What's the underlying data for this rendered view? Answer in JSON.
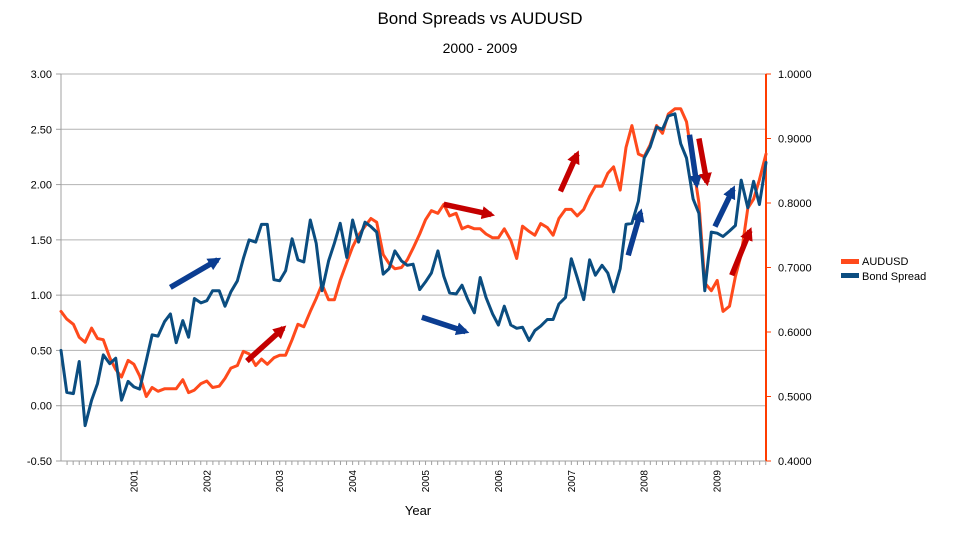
{
  "chart_data": {
    "type": "line",
    "title": "Bond Spreads vs AUDUSD",
    "subtitle": "2000 - 2009",
    "xlabel": "Year",
    "x_range": [
      2000.0,
      2009.67
    ],
    "x_ticks": [
      2001,
      2002,
      2003,
      2004,
      2005,
      2006,
      2007,
      2008,
      2009
    ],
    "left_axis": {
      "series": "Bond Spread",
      "ylim": [
        -0.5,
        3.0
      ],
      "ticks": [
        "-0.50",
        "0.00",
        "0.50",
        "1.00",
        "1.50",
        "2.00",
        "2.50",
        "3.00"
      ]
    },
    "right_axis": {
      "series": "AUDUSD",
      "ylim": [
        0.4,
        1.0
      ],
      "ticks": [
        "0.4000",
        "0.5000",
        "0.6000",
        "0.7000",
        "0.8000",
        "0.9000",
        "1.0000"
      ],
      "color": "#ff3c00"
    },
    "grid": "horizontal",
    "legend_position": "right",
    "series": [
      {
        "name": "AUDUSD",
        "axis": "right",
        "color": "#ff4a1c",
        "points": [
          [
            2000.0,
            0.632
          ],
          [
            2000.08,
            0.62
          ],
          [
            2000.17,
            0.612
          ],
          [
            2000.25,
            0.592
          ],
          [
            2000.33,
            0.584
          ],
          [
            2000.42,
            0.606
          ],
          [
            2000.5,
            0.59
          ],
          [
            2000.58,
            0.588
          ],
          [
            2000.67,
            0.56
          ],
          [
            2000.75,
            0.542
          ],
          [
            2000.83,
            0.53
          ],
          [
            2000.92,
            0.556
          ],
          [
            2001.0,
            0.55
          ],
          [
            2001.08,
            0.532
          ],
          [
            2001.17,
            0.5
          ],
          [
            2001.25,
            0.514
          ],
          [
            2001.33,
            0.508
          ],
          [
            2001.42,
            0.512
          ],
          [
            2001.5,
            0.512
          ],
          [
            2001.58,
            0.512
          ],
          [
            2001.67,
            0.526
          ],
          [
            2001.75,
            0.506
          ],
          [
            2001.83,
            0.51
          ],
          [
            2001.92,
            0.52
          ],
          [
            2002.0,
            0.524
          ],
          [
            2002.08,
            0.514
          ],
          [
            2002.17,
            0.516
          ],
          [
            2002.25,
            0.528
          ],
          [
            2002.33,
            0.544
          ],
          [
            2002.42,
            0.548
          ],
          [
            2002.5,
            0.57
          ],
          [
            2002.58,
            0.566
          ],
          [
            2002.67,
            0.548
          ],
          [
            2002.75,
            0.558
          ],
          [
            2002.83,
            0.55
          ],
          [
            2002.92,
            0.56
          ],
          [
            2003.0,
            0.564
          ],
          [
            2003.08,
            0.564
          ],
          [
            2003.17,
            0.588
          ],
          [
            2003.25,
            0.612
          ],
          [
            2003.33,
            0.608
          ],
          [
            2003.42,
            0.632
          ],
          [
            2003.5,
            0.652
          ],
          [
            2003.58,
            0.674
          ],
          [
            2003.67,
            0.65
          ],
          [
            2003.75,
            0.65
          ],
          [
            2003.83,
            0.68
          ],
          [
            2003.92,
            0.708
          ],
          [
            2004.0,
            0.732
          ],
          [
            2004.08,
            0.75
          ],
          [
            2004.17,
            0.764
          ],
          [
            2004.25,
            0.776
          ],
          [
            2004.33,
            0.77
          ],
          [
            2004.42,
            0.72
          ],
          [
            2004.5,
            0.706
          ],
          [
            2004.58,
            0.698
          ],
          [
            2004.67,
            0.7
          ],
          [
            2004.75,
            0.712
          ],
          [
            2004.83,
            0.73
          ],
          [
            2004.92,
            0.752
          ],
          [
            2005.0,
            0.774
          ],
          [
            2005.08,
            0.788
          ],
          [
            2005.17,
            0.784
          ],
          [
            2005.25,
            0.798
          ],
          [
            2005.33,
            0.78
          ],
          [
            2005.42,
            0.784
          ],
          [
            2005.5,
            0.76
          ],
          [
            2005.58,
            0.764
          ],
          [
            2005.67,
            0.76
          ],
          [
            2005.75,
            0.76
          ],
          [
            2005.83,
            0.752
          ],
          [
            2005.92,
            0.746
          ],
          [
            2006.0,
            0.746
          ],
          [
            2006.08,
            0.76
          ],
          [
            2006.17,
            0.742
          ],
          [
            2006.25,
            0.714
          ],
          [
            2006.33,
            0.764
          ],
          [
            2006.42,
            0.756
          ],
          [
            2006.5,
            0.75
          ],
          [
            2006.58,
            0.768
          ],
          [
            2006.67,
            0.762
          ],
          [
            2006.75,
            0.75
          ],
          [
            2006.83,
            0.776
          ],
          [
            2006.92,
            0.79
          ],
          [
            2007.0,
            0.79
          ],
          [
            2007.08,
            0.78
          ],
          [
            2007.17,
            0.79
          ],
          [
            2007.25,
            0.81
          ],
          [
            2007.33,
            0.826
          ],
          [
            2007.42,
            0.826
          ],
          [
            2007.5,
            0.846
          ],
          [
            2007.58,
            0.856
          ],
          [
            2007.67,
            0.82
          ],
          [
            2007.75,
            0.886
          ],
          [
            2007.83,
            0.92
          ],
          [
            2007.92,
            0.876
          ],
          [
            2008.0,
            0.872
          ],
          [
            2008.08,
            0.89
          ],
          [
            2008.17,
            0.92
          ],
          [
            2008.25,
            0.908
          ],
          [
            2008.33,
            0.938
          ],
          [
            2008.42,
            0.946
          ],
          [
            2008.5,
            0.946
          ],
          [
            2008.58,
            0.926
          ],
          [
            2008.67,
            0.86
          ],
          [
            2008.75,
            0.8
          ],
          [
            2008.83,
            0.676
          ],
          [
            2008.92,
            0.664
          ],
          [
            2009.0,
            0.68
          ],
          [
            2009.08,
            0.632
          ],
          [
            2009.17,
            0.64
          ],
          [
            2009.25,
            0.686
          ],
          [
            2009.33,
            0.72
          ],
          [
            2009.42,
            0.792
          ],
          [
            2009.5,
            0.806
          ],
          [
            2009.58,
            0.836
          ],
          [
            2009.67,
            0.876
          ]
        ]
      },
      {
        "name": "Bond Spread",
        "axis": "left",
        "color": "#0b4d80",
        "points": [
          [
            2000.0,
            0.5
          ],
          [
            2000.08,
            0.12
          ],
          [
            2000.17,
            0.11
          ],
          [
            2000.25,
            0.4
          ],
          [
            2000.33,
            -0.18
          ],
          [
            2000.42,
            0.05
          ],
          [
            2000.5,
            0.2
          ],
          [
            2000.58,
            0.46
          ],
          [
            2000.67,
            0.38
          ],
          [
            2000.75,
            0.43
          ],
          [
            2000.83,
            0.05
          ],
          [
            2000.92,
            0.22
          ],
          [
            2001.0,
            0.17
          ],
          [
            2001.08,
            0.15
          ],
          [
            2001.17,
            0.41
          ],
          [
            2001.25,
            0.64
          ],
          [
            2001.33,
            0.63
          ],
          [
            2001.42,
            0.76
          ],
          [
            2001.5,
            0.83
          ],
          [
            2001.58,
            0.57
          ],
          [
            2001.67,
            0.77
          ],
          [
            2001.75,
            0.62
          ],
          [
            2001.83,
            0.97
          ],
          [
            2001.92,
            0.93
          ],
          [
            2002.0,
            0.95
          ],
          [
            2002.08,
            1.04
          ],
          [
            2002.17,
            1.04
          ],
          [
            2002.25,
            0.9
          ],
          [
            2002.33,
            1.03
          ],
          [
            2002.42,
            1.13
          ],
          [
            2002.5,
            1.33
          ],
          [
            2002.58,
            1.5
          ],
          [
            2002.67,
            1.48
          ],
          [
            2002.75,
            1.64
          ],
          [
            2002.83,
            1.64
          ],
          [
            2002.92,
            1.14
          ],
          [
            2003.0,
            1.13
          ],
          [
            2003.08,
            1.22
          ],
          [
            2003.17,
            1.51
          ],
          [
            2003.25,
            1.32
          ],
          [
            2003.33,
            1.3
          ],
          [
            2003.42,
            1.68
          ],
          [
            2003.5,
            1.47
          ],
          [
            2003.58,
            1.04
          ],
          [
            2003.67,
            1.31
          ],
          [
            2003.75,
            1.47
          ],
          [
            2003.83,
            1.65
          ],
          [
            2003.92,
            1.34
          ],
          [
            2004.0,
            1.68
          ],
          [
            2004.08,
            1.48
          ],
          [
            2004.17,
            1.66
          ],
          [
            2004.25,
            1.62
          ],
          [
            2004.33,
            1.57
          ],
          [
            2004.42,
            1.19
          ],
          [
            2004.5,
            1.24
          ],
          [
            2004.58,
            1.4
          ],
          [
            2004.67,
            1.31
          ],
          [
            2004.75,
            1.27
          ],
          [
            2004.83,
            1.28
          ],
          [
            2004.92,
            1.05
          ],
          [
            2005.0,
            1.12
          ],
          [
            2005.08,
            1.2
          ],
          [
            2005.17,
            1.4
          ],
          [
            2005.25,
            1.17
          ],
          [
            2005.33,
            1.02
          ],
          [
            2005.42,
            1.01
          ],
          [
            2005.5,
            1.09
          ],
          [
            2005.58,
            0.96
          ],
          [
            2005.67,
            0.84
          ],
          [
            2005.75,
            1.16
          ],
          [
            2005.83,
            0.98
          ],
          [
            2005.92,
            0.83
          ],
          [
            2006.0,
            0.73
          ],
          [
            2006.08,
            0.9
          ],
          [
            2006.17,
            0.73
          ],
          [
            2006.25,
            0.7
          ],
          [
            2006.33,
            0.71
          ],
          [
            2006.42,
            0.59
          ],
          [
            2006.5,
            0.68
          ],
          [
            2006.58,
            0.72
          ],
          [
            2006.67,
            0.78
          ],
          [
            2006.75,
            0.78
          ],
          [
            2006.83,
            0.92
          ],
          [
            2006.92,
            0.98
          ],
          [
            2007.0,
            1.33
          ],
          [
            2007.08,
            1.16
          ],
          [
            2007.17,
            0.96
          ],
          [
            2007.25,
            1.32
          ],
          [
            2007.33,
            1.18
          ],
          [
            2007.42,
            1.27
          ],
          [
            2007.5,
            1.2
          ],
          [
            2007.58,
            1.03
          ],
          [
            2007.67,
            1.24
          ],
          [
            2007.75,
            1.64
          ],
          [
            2007.83,
            1.65
          ],
          [
            2007.92,
            1.85
          ],
          [
            2008.0,
            2.24
          ],
          [
            2008.08,
            2.34
          ],
          [
            2008.17,
            2.52
          ],
          [
            2008.25,
            2.5
          ],
          [
            2008.33,
            2.62
          ],
          [
            2008.42,
            2.64
          ],
          [
            2008.5,
            2.37
          ],
          [
            2008.58,
            2.24
          ],
          [
            2008.67,
            1.87
          ],
          [
            2008.75,
            1.74
          ],
          [
            2008.83,
            1.04
          ],
          [
            2008.92,
            1.57
          ],
          [
            2009.0,
            1.56
          ],
          [
            2009.08,
            1.53
          ],
          [
            2009.17,
            1.58
          ],
          [
            2009.25,
            1.63
          ],
          [
            2009.33,
            2.04
          ],
          [
            2009.42,
            1.79
          ],
          [
            2009.5,
            2.03
          ],
          [
            2009.58,
            1.82
          ],
          [
            2009.67,
            2.2
          ]
        ]
      }
    ],
    "annotations": [
      {
        "type": "arrow",
        "color": "#0b3d91",
        "from": [
          2001.5,
          1.07
        ],
        "to": [
          2002.15,
          1.32
        ]
      },
      {
        "type": "arrow",
        "color": "#c40000",
        "from": [
          2002.55,
          0.555
        ],
        "to": [
          2003.05,
          0.606
        ]
      },
      {
        "type": "arrow",
        "color": "#c40000",
        "from": [
          2005.25,
          0.798
        ],
        "to": [
          2005.9,
          0.782
        ]
      },
      {
        "type": "arrow",
        "color": "#0b3d91",
        "from": [
          2004.95,
          0.8
        ],
        "to": [
          2005.55,
          0.67
        ]
      },
      {
        "type": "arrow",
        "color": "#c40000",
        "from": [
          2006.85,
          0.818
        ],
        "to": [
          2007.08,
          0.876
        ]
      },
      {
        "type": "arrow",
        "color": "#0b3d91",
        "from": [
          2007.78,
          1.36
        ],
        "to": [
          2007.95,
          1.75
        ]
      },
      {
        "type": "arrow",
        "color": "#0b3d91",
        "from": [
          2008.62,
          2.45
        ],
        "to": [
          2008.72,
          2.0
        ]
      },
      {
        "type": "arrow",
        "color": "#c40000",
        "from": [
          2008.75,
          0.9
        ],
        "to": [
          2008.86,
          0.832
        ]
      },
      {
        "type": "arrow",
        "color": "#0b3d91",
        "from": [
          2008.97,
          1.62
        ],
        "to": [
          2009.22,
          1.96
        ]
      },
      {
        "type": "arrow",
        "color": "#c40000",
        "from": [
          2009.2,
          0.688
        ],
        "to": [
          2009.45,
          0.757
        ]
      }
    ]
  }
}
